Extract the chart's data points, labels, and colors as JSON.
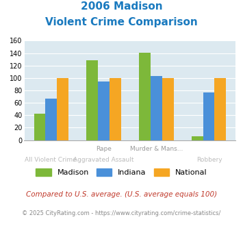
{
  "title_line1": "2006 Madison",
  "title_line2": "Violent Crime Comparison",
  "title_color": "#1a7abf",
  "top_labels": [
    "",
    "Rape",
    "Murder & Mans...",
    ""
  ],
  "bot_labels": [
    "All Violent Crime",
    "Aggravated Assault",
    "",
    "Robbery"
  ],
  "top_label_color": "#999999",
  "bot_label_color": "#bbbbbb",
  "madison": [
    42,
    128,
    141,
    6
  ],
  "indiana": [
    67,
    94,
    103,
    77
  ],
  "national": [
    100,
    100,
    100,
    100
  ],
  "madison_color": "#7db83a",
  "indiana_color": "#4a90d9",
  "national_color": "#f5a623",
  "ylim": [
    0,
    160
  ],
  "yticks": [
    0,
    20,
    40,
    60,
    80,
    100,
    120,
    140,
    160
  ],
  "legend_labels": [
    "Madison",
    "Indiana",
    "National"
  ],
  "footnote1": "Compared to U.S. average. (U.S. average equals 100)",
  "footnote2": "© 2025 CityRating.com - https://www.cityrating.com/crime-statistics/",
  "footnote1_color": "#c0392b",
  "footnote2_color": "#888888",
  "bg_color": "#dce9f0",
  "bar_width": 0.22
}
